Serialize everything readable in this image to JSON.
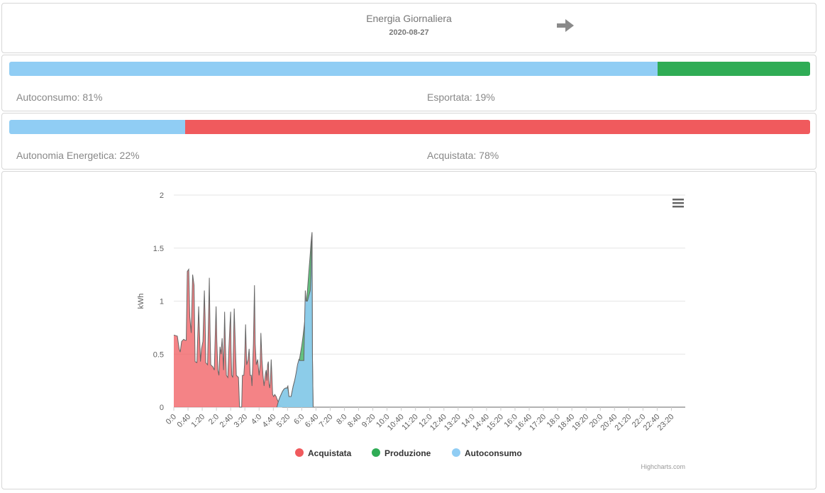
{
  "header": {
    "title": "Energia Giornaliera",
    "date": "2020-08-27",
    "next_icon": "arrow-right-icon"
  },
  "ratios": [
    {
      "left_label": "Autoconsumo: 81%",
      "right_label": "Esportata: 19%",
      "left_pct": 81,
      "right_pct": 19,
      "left_color": "#90cdf4",
      "right_color": "#2fac55"
    },
    {
      "left_label": "Autonomia Energetica: 22%",
      "right_label": "Acquistata: 78%",
      "left_pct": 22,
      "right_pct": 78,
      "left_color": "#90cdf4",
      "right_color": "#f05a5d"
    }
  ],
  "chart_data": {
    "type": "area",
    "title": "",
    "xlabel": "",
    "ylabel": "kWh",
    "ylim": [
      0,
      2
    ],
    "yticks": [
      "0",
      "0.5",
      "1",
      "1.5",
      "2"
    ],
    "grid": true,
    "legend_position": "bottom",
    "credits": "Highcharts.com",
    "menu_icon": "hamburger-menu-icon",
    "xtick_labels": [
      "0:0",
      "0:40",
      "1:20",
      "2:0",
      "2:40",
      "3:20",
      "4:0",
      "4:40",
      "5:20",
      "6:0",
      "6:40",
      "7:20",
      "8:0",
      "8:40",
      "9:20",
      "10:0",
      "10:40",
      "11:20",
      "12:0",
      "12:40",
      "13:20",
      "14:0",
      "14:40",
      "15:20",
      "16:0",
      "16:40",
      "17:20",
      "18:0",
      "18:40",
      "19:20",
      "20:0",
      "20:40",
      "21:20",
      "22:0",
      "22:40",
      "23:20"
    ],
    "series": [
      {
        "name": "Acquistata",
        "color": "#f05a5d",
        "points": [
          [
            0,
            0.68
          ],
          [
            10,
            0.67
          ],
          [
            15,
            0.55
          ],
          [
            18,
            0.52
          ],
          [
            22,
            0.62
          ],
          [
            28,
            0.64
          ],
          [
            32,
            0.63
          ],
          [
            35,
            0.63
          ],
          [
            38,
            1.28
          ],
          [
            42,
            1.3
          ],
          [
            45,
            0.85
          ],
          [
            49,
            0.7
          ],
          [
            53,
            1.25
          ],
          [
            57,
            1.15
          ],
          [
            60,
            0.43
          ],
          [
            65,
            0.42
          ],
          [
            70,
            0.95
          ],
          [
            72,
            0.73
          ],
          [
            75,
            0.43
          ],
          [
            78,
            0.55
          ],
          [
            82,
            0.62
          ],
          [
            86,
            1.1
          ],
          [
            88,
            0.85
          ],
          [
            90,
            0.42
          ],
          [
            95,
            0.4
          ],
          [
            100,
            1.22
          ],
          [
            102,
            0.72
          ],
          [
            104,
            0.4
          ],
          [
            110,
            0.38
          ],
          [
            114,
            0.35
          ],
          [
            116,
            0.6
          ],
          [
            119,
            0.95
          ],
          [
            121,
            0.63
          ],
          [
            124,
            0.35
          ],
          [
            127,
            0.3
          ],
          [
            130,
            0.57
          ],
          [
            133,
            0.5
          ],
          [
            136,
            0.65
          ],
          [
            138,
            0.5
          ],
          [
            140,
            0.35
          ],
          [
            143,
            0.9
          ],
          [
            145,
            0.6
          ],
          [
            148,
            0.3
          ],
          [
            152,
            0.28
          ],
          [
            155,
            0.55
          ],
          [
            158,
            0.78
          ],
          [
            160,
            0.9
          ],
          [
            161,
            0.55
          ],
          [
            163,
            0.3
          ],
          [
            166,
            0.28
          ],
          [
            170,
            0.93
          ],
          [
            173,
            0.6
          ],
          [
            176,
            0.3
          ],
          [
            182,
            0.28
          ],
          [
            185,
            0.0
          ],
          [
            191,
            0.0
          ],
          [
            193,
            0.3
          ],
          [
            197,
            0.3
          ],
          [
            199,
            0.4
          ],
          [
            202,
            0.78
          ],
          [
            205,
            0.4
          ],
          [
            209,
            0.45
          ],
          [
            212,
            0.55
          ],
          [
            215,
            0.3
          ],
          [
            218,
            0.3
          ],
          [
            220,
            0.2
          ],
          [
            224,
            0.6
          ],
          [
            227,
            1.15
          ],
          [
            229,
            0.6
          ],
          [
            232,
            0.4
          ],
          [
            236,
            0.45
          ],
          [
            240,
            0.3
          ],
          [
            243,
            0.4
          ],
          [
            245,
            0.7
          ],
          [
            248,
            0.45
          ],
          [
            251,
            0.3
          ],
          [
            254,
            0.2
          ],
          [
            258,
            0.32
          ],
          [
            260,
            0.35
          ],
          [
            262,
            0.25
          ],
          [
            264,
            0.4
          ],
          [
            266,
            0.43
          ],
          [
            268,
            0.22
          ],
          [
            270,
            0.18
          ],
          [
            272,
            0.25
          ],
          [
            274,
            0.45
          ],
          [
            276,
            0.3
          ],
          [
            278,
            0.12
          ],
          [
            281,
            0.1
          ],
          [
            284,
            0.12
          ],
          [
            288,
            0.1
          ],
          [
            290,
            0.08
          ],
          [
            294,
            0.05
          ],
          [
            298,
            0.02
          ],
          [
            302,
            0.01
          ],
          [
            306,
            0
          ],
          [
            312,
            0
          ],
          [
            320,
            0
          ],
          [
            330,
            0
          ],
          [
            340,
            0
          ],
          [
            1439,
            0
          ]
        ]
      },
      {
        "name": "Produzione",
        "color": "#2fac55",
        "points": [
          [
            290,
            0
          ],
          [
            294,
            0.05
          ],
          [
            298,
            0.09
          ],
          [
            302,
            0.12
          ],
          [
            306,
            0.15
          ],
          [
            310,
            0.17
          ],
          [
            314,
            0.18
          ],
          [
            318,
            0.18
          ],
          [
            321,
            0.2
          ],
          [
            324,
            0.1
          ],
          [
            330,
            0.1
          ],
          [
            333,
            0.15
          ],
          [
            336,
            0.2
          ],
          [
            340,
            0.25
          ],
          [
            344,
            0.3
          ],
          [
            348,
            0.35
          ],
          [
            352,
            0.42
          ],
          [
            356,
            0.5
          ],
          [
            360,
            0.58
          ],
          [
            364,
            0.68
          ],
          [
            368,
            0.8
          ],
          [
            372,
            0.95
          ],
          [
            376,
            1.1
          ],
          [
            380,
            1.28
          ],
          [
            384,
            1.45
          ],
          [
            386,
            1.55
          ],
          [
            388,
            1.62
          ],
          [
            389,
            1.65
          ],
          [
            390,
            0.5
          ],
          [
            392,
            0.0
          ],
          [
            1439,
            0
          ]
        ]
      },
      {
        "name": "Autoconsumo",
        "color": "#90cdf4",
        "points": [
          [
            290,
            0
          ],
          [
            294,
            0.05
          ],
          [
            298,
            0.09
          ],
          [
            302,
            0.12
          ],
          [
            306,
            0.15
          ],
          [
            310,
            0.17
          ],
          [
            314,
            0.18
          ],
          [
            318,
            0.18
          ],
          [
            321,
            0.18
          ],
          [
            324,
            0.1
          ],
          [
            330,
            0.1
          ],
          [
            333,
            0.15
          ],
          [
            336,
            0.2
          ],
          [
            340,
            0.25
          ],
          [
            344,
            0.32
          ],
          [
            348,
            0.4
          ],
          [
            352,
            0.45
          ],
          [
            354,
            0.44
          ],
          [
            356,
            0.44
          ],
          [
            360,
            0.44
          ],
          [
            364,
            0.44
          ],
          [
            366,
            0.44
          ],
          [
            368,
            0.8
          ],
          [
            370,
            1.1
          ],
          [
            372,
            1.0
          ],
          [
            376,
            1.0
          ],
          [
            380,
            1.05
          ],
          [
            384,
            1.1
          ],
          [
            386,
            1.25
          ],
          [
            388,
            1.6
          ],
          [
            389,
            1.62
          ],
          [
            390,
            0.5
          ],
          [
            392,
            0.0
          ],
          [
            1439,
            0
          ]
        ]
      }
    ]
  }
}
